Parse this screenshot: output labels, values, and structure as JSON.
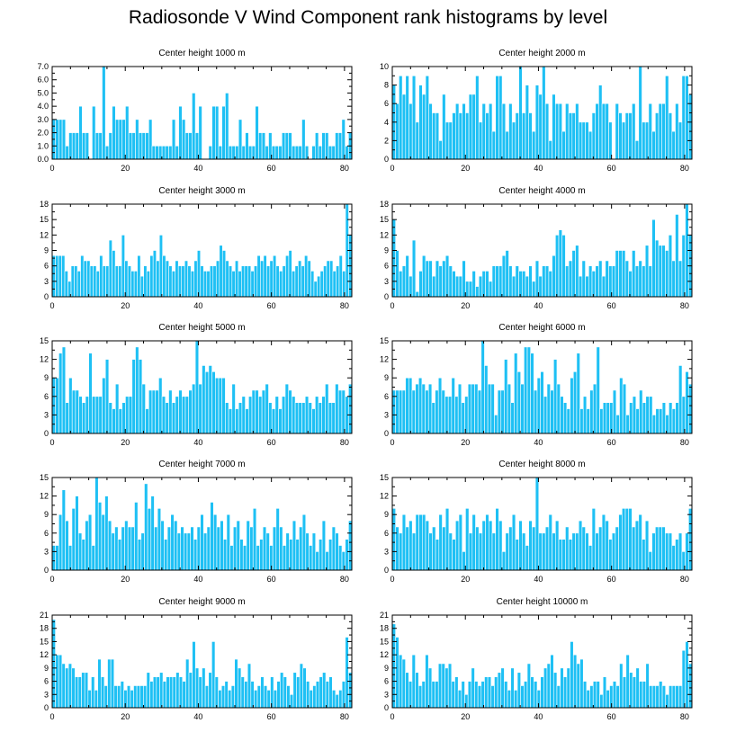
{
  "title": "Radiosonde V Wind Component rank histograms by level",
  "colors": {
    "bar": "#1ec0f4",
    "bar_edge": "#ffffff",
    "axis": "#000000"
  },
  "chart_data": [
    {
      "type": "bar",
      "title": "Center height 1000 m",
      "xlim": [
        0,
        82
      ],
      "ylim": [
        0,
        7
      ],
      "xticks": [
        0,
        20,
        40,
        60,
        80
      ],
      "yticks": [
        0,
        1,
        2,
        3,
        4,
        5,
        6,
        7
      ],
      "ytick_labels": [
        "0.0",
        "1.0",
        "2.0",
        "3.0",
        "4.0",
        "5.0",
        "6.0",
        "7.0"
      ],
      "values": [
        3,
        3,
        3,
        3,
        1,
        2,
        2,
        2,
        4,
        2,
        2,
        0,
        4,
        2,
        2,
        7,
        1,
        2,
        4,
        3,
        3,
        3,
        4,
        2,
        2,
        3,
        2,
        2,
        2,
        3,
        1,
        1,
        1,
        1,
        1,
        1,
        3,
        1,
        4,
        3,
        2,
        2,
        5,
        2,
        4,
        0,
        0,
        1,
        4,
        4,
        1,
        4,
        5,
        1,
        1,
        1,
        3,
        1,
        2,
        1,
        1,
        4,
        2,
        2,
        1,
        2,
        1,
        1,
        1,
        2,
        2,
        2,
        1,
        1,
        1,
        3,
        1,
        0,
        1,
        2,
        1,
        2,
        2,
        1,
        1,
        2,
        2,
        3,
        1,
        2
      ]
    },
    {
      "type": "bar",
      "title": "Center height 2000 m",
      "xlim": [
        0,
        82
      ],
      "ylim": [
        0,
        10
      ],
      "xticks": [
        0,
        20,
        40,
        60,
        80
      ],
      "yticks": [
        0,
        2,
        4,
        6,
        8,
        10
      ],
      "ytick_labels": [
        "0",
        "2",
        "4",
        "6",
        "8",
        "10"
      ],
      "values": [
        8,
        6,
        9,
        7,
        9,
        6,
        9,
        4,
        8,
        7,
        9,
        6,
        5,
        5,
        2,
        7,
        4,
        4,
        5,
        6,
        5,
        6,
        5,
        7,
        7,
        9,
        4,
        6,
        5,
        6,
        3,
        9,
        9,
        6,
        3,
        6,
        4,
        5,
        10,
        5,
        8,
        5,
        3,
        8,
        7,
        10,
        6,
        2,
        7,
        6,
        6,
        3,
        6,
        5,
        5,
        6,
        4,
        4,
        4,
        3,
        5,
        6,
        8,
        6,
        6,
        4,
        0,
        6,
        5,
        4,
        5,
        5,
        6,
        2,
        10,
        4,
        4,
        6,
        3,
        5,
        6,
        6,
        9,
        5,
        3,
        6,
        4,
        9,
        9,
        7
      ]
    },
    {
      "type": "bar",
      "title": "Center height 3000 m",
      "xlim": [
        0,
        82
      ],
      "ylim": [
        0,
        18
      ],
      "xticks": [
        0,
        20,
        40,
        60,
        80
      ],
      "yticks": [
        0,
        3,
        6,
        9,
        12,
        15,
        18
      ],
      "ytick_labels": [
        "0",
        "3",
        "6",
        "9",
        "12",
        "15",
        "18"
      ],
      "values": [
        8,
        8,
        8,
        8,
        5,
        3,
        6,
        6,
        5,
        8,
        7,
        7,
        6,
        6,
        5,
        8,
        6,
        6,
        11,
        9,
        6,
        6,
        12,
        7,
        6,
        5,
        5,
        8,
        4,
        6,
        5,
        8,
        9,
        7,
        12,
        8,
        7,
        6,
        5,
        7,
        6,
        6,
        7,
        6,
        5,
        7,
        9,
        6,
        5,
        5,
        6,
        6,
        7,
        10,
        9,
        7,
        6,
        5,
        7,
        5,
        6,
        6,
        6,
        5,
        6,
        8,
        7,
        8,
        6,
        7,
        8,
        6,
        5,
        6,
        8,
        9,
        5,
        6,
        7,
        6,
        8,
        7,
        5,
        3,
        4,
        5,
        6,
        7,
        7,
        5,
        6,
        8,
        5,
        18,
        12
      ]
    },
    {
      "type": "bar",
      "title": "Center height 4000 m",
      "xlim": [
        0,
        82
      ],
      "ylim": [
        0,
        18
      ],
      "xticks": [
        0,
        20,
        40,
        60,
        80
      ],
      "yticks": [
        0,
        3,
        6,
        9,
        12,
        15,
        18
      ],
      "ytick_labels": [
        "0",
        "3",
        "6",
        "9",
        "12",
        "15",
        "18"
      ],
      "values": [
        15,
        9,
        5,
        6,
        8,
        4,
        11,
        1,
        5,
        8,
        7,
        7,
        4,
        7,
        6,
        7,
        8,
        6,
        5,
        4,
        4,
        7,
        3,
        3,
        5,
        2,
        4,
        5,
        5,
        3,
        6,
        6,
        6,
        8,
        9,
        6,
        4,
        6,
        5,
        5,
        4,
        6,
        3,
        7,
        4,
        6,
        6,
        5,
        8,
        12,
        13,
        12,
        6,
        7,
        9,
        10,
        4,
        7,
        4,
        6,
        5,
        6,
        7,
        4,
        7,
        6,
        6,
        9,
        9,
        9,
        7,
        5,
        9,
        6,
        7,
        6,
        10,
        6,
        15,
        11,
        10,
        10,
        9,
        12,
        7,
        16,
        7,
        12,
        18,
        12
      ]
    },
    {
      "type": "bar",
      "title": "Center height 5000 m",
      "xlim": [
        0,
        82
      ],
      "ylim": [
        0,
        15
      ],
      "xticks": [
        0,
        20,
        40,
        60,
        80
      ],
      "yticks": [
        0,
        3,
        6,
        9,
        12,
        15
      ],
      "ytick_labels": [
        "0",
        "3",
        "6",
        "9",
        "12",
        "15"
      ],
      "values": [
        9,
        9,
        13,
        14,
        5,
        9,
        7,
        7,
        6,
        5,
        6,
        13,
        6,
        6,
        6,
        9,
        12,
        5,
        4,
        8,
        4,
        5,
        6,
        6,
        12,
        14,
        12,
        8,
        4,
        7,
        7,
        7,
        9,
        6,
        5,
        7,
        5,
        6,
        7,
        6,
        6,
        7,
        8,
        15,
        8,
        11,
        10,
        11,
        10,
        9,
        9,
        9,
        5,
        4,
        8,
        4,
        5,
        6,
        4,
        6,
        7,
        7,
        6,
        7,
        8,
        5,
        4,
        6,
        4,
        6,
        8,
        7,
        6,
        5,
        5,
        5,
        6,
        5,
        4,
        6,
        5,
        6,
        8,
        5,
        5,
        8,
        7,
        7,
        6,
        8
      ]
    },
    {
      "type": "bar",
      "title": "Center height 6000 m",
      "xlim": [
        0,
        82
      ],
      "ylim": [
        0,
        15
      ],
      "xticks": [
        0,
        20,
        40,
        60,
        80
      ],
      "yticks": [
        0,
        3,
        6,
        9,
        12,
        15
      ],
      "ytick_labels": [
        "0",
        "3",
        "6",
        "9",
        "12",
        "15"
      ],
      "values": [
        7,
        7,
        7,
        7,
        9,
        9,
        7,
        8,
        9,
        8,
        7,
        8,
        5,
        7,
        9,
        7,
        6,
        6,
        9,
        6,
        8,
        5,
        6,
        8,
        8,
        8,
        7,
        15,
        11,
        8,
        8,
        3,
        7,
        7,
        12,
        8,
        5,
        13,
        10,
        8,
        14,
        14,
        13,
        7,
        9,
        10,
        6,
        8,
        7,
        12,
        8,
        6,
        5,
        4,
        9,
        10,
        13,
        4,
        6,
        4,
        7,
        8,
        14,
        4,
        5,
        5,
        5,
        7,
        3,
        9,
        8,
        3,
        5,
        6,
        4,
        7,
        5,
        6,
        6,
        3,
        4,
        4,
        5,
        3,
        5,
        4,
        5,
        11,
        6,
        10,
        8
      ]
    },
    {
      "type": "bar",
      "title": "Center height 7000 m",
      "xlim": [
        0,
        82
      ],
      "ylim": [
        0,
        15
      ],
      "xticks": [
        0,
        20,
        40,
        60,
        80
      ],
      "yticks": [
        0,
        3,
        6,
        9,
        12,
        15
      ],
      "ytick_labels": [
        "0",
        "3",
        "6",
        "9",
        "12",
        "15"
      ],
      "values": [
        4,
        4,
        9,
        13,
        8,
        4,
        10,
        12,
        6,
        5,
        8,
        9,
        4,
        15,
        11,
        9,
        12,
        8,
        6,
        7,
        5,
        7,
        8,
        7,
        7,
        11,
        5,
        6,
        14,
        10,
        12,
        7,
        10,
        8,
        5,
        7,
        9,
        8,
        6,
        7,
        6,
        6,
        7,
        5,
        7,
        9,
        6,
        7,
        11,
        9,
        7,
        8,
        5,
        9,
        4,
        7,
        8,
        5,
        4,
        8,
        7,
        10,
        4,
        5,
        7,
        6,
        4,
        7,
        10,
        7,
        4,
        6,
        5,
        8,
        5,
        7,
        9,
        6,
        4,
        6,
        3,
        5,
        8,
        3,
        5,
        7,
        6,
        4,
        3,
        5,
        8
      ]
    },
    {
      "type": "bar",
      "title": "Center height 8000 m",
      "xlim": [
        0,
        82
      ],
      "ylim": [
        0,
        15
      ],
      "xticks": [
        0,
        20,
        40,
        60,
        80
      ],
      "yticks": [
        0,
        3,
        6,
        9,
        12,
        15
      ],
      "ytick_labels": [
        "0",
        "3",
        "6",
        "9",
        "12",
        "15"
      ],
      "values": [
        10,
        7,
        6,
        9,
        7,
        8,
        6,
        9,
        9,
        9,
        8,
        6,
        7,
        5,
        9,
        7,
        10,
        6,
        5,
        8,
        9,
        3,
        10,
        6,
        9,
        7,
        6,
        8,
        9,
        8,
        6,
        10,
        8,
        3,
        6,
        7,
        9,
        5,
        8,
        6,
        4,
        8,
        7,
        15,
        6,
        6,
        7,
        9,
        6,
        8,
        5,
        5,
        7,
        5,
        6,
        6,
        8,
        7,
        6,
        4,
        10,
        6,
        7,
        9,
        8,
        5,
        6,
        7,
        9,
        10,
        10,
        10,
        7,
        8,
        9,
        5,
        8,
        3,
        6,
        7,
        7,
        7,
        6,
        6,
        4,
        5,
        6,
        3,
        6,
        10
      ]
    },
    {
      "type": "bar",
      "title": "Center height 9000 m",
      "xlim": [
        0,
        82
      ],
      "ylim": [
        0,
        21
      ],
      "xticks": [
        0,
        20,
        40,
        60,
        80
      ],
      "yticks": [
        0,
        3,
        6,
        9,
        12,
        15,
        18,
        21
      ],
      "ytick_labels": [
        "0",
        "3",
        "6",
        "9",
        "12",
        "15",
        "18",
        "21"
      ],
      "values": [
        20,
        12,
        12,
        10,
        9,
        10,
        9,
        7,
        7,
        8,
        8,
        4,
        7,
        4,
        11,
        7,
        5,
        11,
        11,
        5,
        5,
        6,
        4,
        5,
        4,
        5,
        5,
        5,
        5,
        8,
        6,
        7,
        7,
        8,
        6,
        7,
        7,
        7,
        8,
        7,
        6,
        11,
        8,
        15,
        9,
        7,
        9,
        5,
        8,
        15,
        7,
        4,
        5,
        6,
        4,
        5,
        11,
        9,
        7,
        6,
        10,
        6,
        4,
        5,
        7,
        5,
        4,
        7,
        4,
        6,
        8,
        7,
        5,
        3,
        8,
        7,
        10,
        9,
        6,
        4,
        5,
        6,
        7,
        8,
        6,
        7,
        4,
        3,
        4,
        6,
        16,
        8
      ]
    },
    {
      "type": "bar",
      "title": "Center height 10000 m",
      "xlim": [
        0,
        82
      ],
      "ylim": [
        0,
        21
      ],
      "xticks": [
        0,
        20,
        40,
        60,
        80
      ],
      "yticks": [
        0,
        3,
        6,
        9,
        12,
        15,
        18,
        21
      ],
      "ytick_labels": [
        "0",
        "3",
        "6",
        "9",
        "12",
        "15",
        "18",
        "21"
      ],
      "values": [
        19,
        16,
        12,
        11,
        8,
        6,
        12,
        8,
        5,
        6,
        12,
        9,
        6,
        6,
        10,
        10,
        9,
        10,
        6,
        7,
        4,
        6,
        3,
        6,
        9,
        6,
        5,
        6,
        7,
        7,
        5,
        7,
        8,
        9,
        6,
        4,
        9,
        4,
        8,
        5,
        6,
        10,
        7,
        6,
        4,
        7,
        9,
        10,
        12,
        8,
        5,
        9,
        7,
        9,
        15,
        12,
        10,
        11,
        6,
        4,
        5,
        6,
        6,
        3,
        7,
        4,
        5,
        6,
        5,
        10,
        7,
        12,
        8,
        7,
        9,
        6,
        6,
        10,
        5,
        5,
        5,
        6,
        5,
        3,
        5,
        5,
        5,
        5,
        13,
        15,
        10
      ]
    }
  ]
}
